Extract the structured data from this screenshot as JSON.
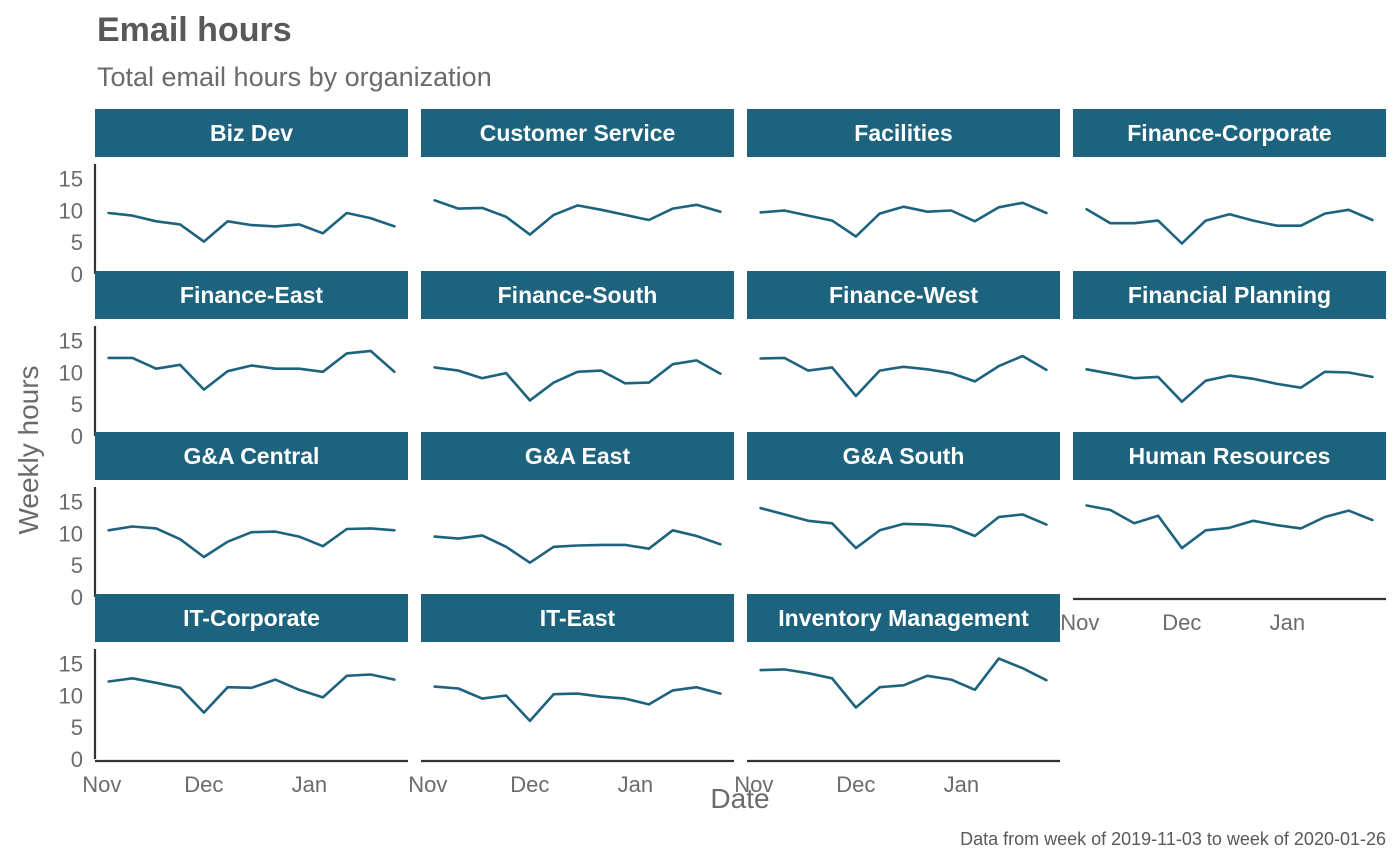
{
  "chart_data": {
    "type": "line",
    "title": "Email hours",
    "subtitle": "Total email hours by organization",
    "xlabel": "Date",
    "ylabel": "Weekly hours",
    "caption": "Data from week of 2019-11-03 to week of 2020-01-26",
    "x": [
      "2019-11-03",
      "2019-11-10",
      "2019-11-17",
      "2019-11-24",
      "2019-12-01",
      "2019-12-08",
      "2019-12-15",
      "2019-12-22",
      "2019-12-29",
      "2020-01-05",
      "2020-01-12",
      "2020-01-19",
      "2020-01-26"
    ],
    "ylim": [
      0,
      17
    ],
    "y_ticks": [
      0,
      5,
      10,
      15
    ],
    "x_ticks": [
      {
        "label": "Nov",
        "date": "2019-11-01"
      },
      {
        "label": "Dec",
        "date": "2019-12-01"
      },
      {
        "label": "Jan",
        "date": "2020-01-01"
      }
    ],
    "line_color": "#1e637e",
    "strip_color": "#1e637e",
    "facets": [
      {
        "name": "Biz Dev",
        "values": [
          9.6,
          9.2,
          8.3,
          7.8,
          5.1,
          8.3,
          7.7,
          7.5,
          7.8,
          6.4,
          9.6,
          8.8,
          7.5
        ]
      },
      {
        "name": "Customer Service",
        "values": [
          11.6,
          10.3,
          10.4,
          9.0,
          6.2,
          9.3,
          10.8,
          10.1,
          9.3,
          8.5,
          10.3,
          10.9,
          9.8
        ]
      },
      {
        "name": "Facilities",
        "values": [
          9.7,
          10.0,
          9.2,
          8.4,
          5.9,
          9.5,
          10.6,
          9.8,
          10.0,
          8.3,
          10.5,
          11.2,
          9.6
        ]
      },
      {
        "name": "Finance-Corporate",
        "values": [
          10.2,
          8.0,
          8.0,
          8.4,
          4.8,
          8.4,
          9.4,
          8.4,
          7.6,
          7.6,
          9.5,
          10.1,
          8.5
        ]
      },
      {
        "name": "Finance-East",
        "values": [
          12.3,
          12.3,
          10.6,
          11.2,
          7.3,
          10.2,
          11.1,
          10.6,
          10.6,
          10.1,
          13.0,
          13.4,
          10.1
        ]
      },
      {
        "name": "Finance-South",
        "values": [
          10.8,
          10.3,
          9.1,
          9.9,
          5.6,
          8.4,
          10.1,
          10.3,
          8.3,
          8.4,
          11.3,
          11.9,
          9.8
        ]
      },
      {
        "name": "Finance-West",
        "values": [
          12.2,
          12.3,
          10.3,
          10.8,
          6.3,
          10.3,
          10.9,
          10.5,
          9.9,
          8.6,
          11.0,
          12.6,
          10.4
        ]
      },
      {
        "name": "Financial Planning",
        "values": [
          10.5,
          9.8,
          9.1,
          9.3,
          5.4,
          8.7,
          9.5,
          9.0,
          8.2,
          7.6,
          10.1,
          10.0,
          9.3
        ]
      },
      {
        "name": "G&A Central",
        "values": [
          10.5,
          11.1,
          10.8,
          9.1,
          6.3,
          8.7,
          10.2,
          10.3,
          9.5,
          8.0,
          10.7,
          10.8,
          10.5
        ]
      },
      {
        "name": "G&A East",
        "values": [
          9.5,
          9.2,
          9.7,
          7.9,
          5.4,
          7.9,
          8.1,
          8.2,
          8.2,
          7.6,
          10.5,
          9.6,
          8.3
        ]
      },
      {
        "name": "G&A South",
        "values": [
          14.0,
          13.0,
          12.0,
          11.6,
          7.7,
          10.5,
          11.5,
          11.4,
          11.1,
          9.6,
          12.6,
          13.0,
          11.4
        ]
      },
      {
        "name": "Human Resources",
        "values": [
          14.4,
          13.7,
          11.6,
          12.8,
          7.7,
          10.5,
          10.9,
          12.0,
          11.3,
          10.8,
          12.6,
          13.6,
          12.1
        ]
      },
      {
        "name": "IT-Corporate",
        "values": [
          12.2,
          12.7,
          12.0,
          11.2,
          7.3,
          11.3,
          11.2,
          12.5,
          10.9,
          9.7,
          13.1,
          13.3,
          12.5
        ]
      },
      {
        "name": "IT-East",
        "values": [
          11.4,
          11.1,
          9.5,
          10.0,
          6.0,
          10.2,
          10.3,
          9.8,
          9.5,
          8.6,
          10.8,
          11.3,
          10.3
        ]
      },
      {
        "name": "Inventory Management",
        "values": [
          14.0,
          14.1,
          13.5,
          12.7,
          8.1,
          11.3,
          11.6,
          13.1,
          12.5,
          10.9,
          15.8,
          14.3,
          12.4
        ]
      }
    ]
  }
}
